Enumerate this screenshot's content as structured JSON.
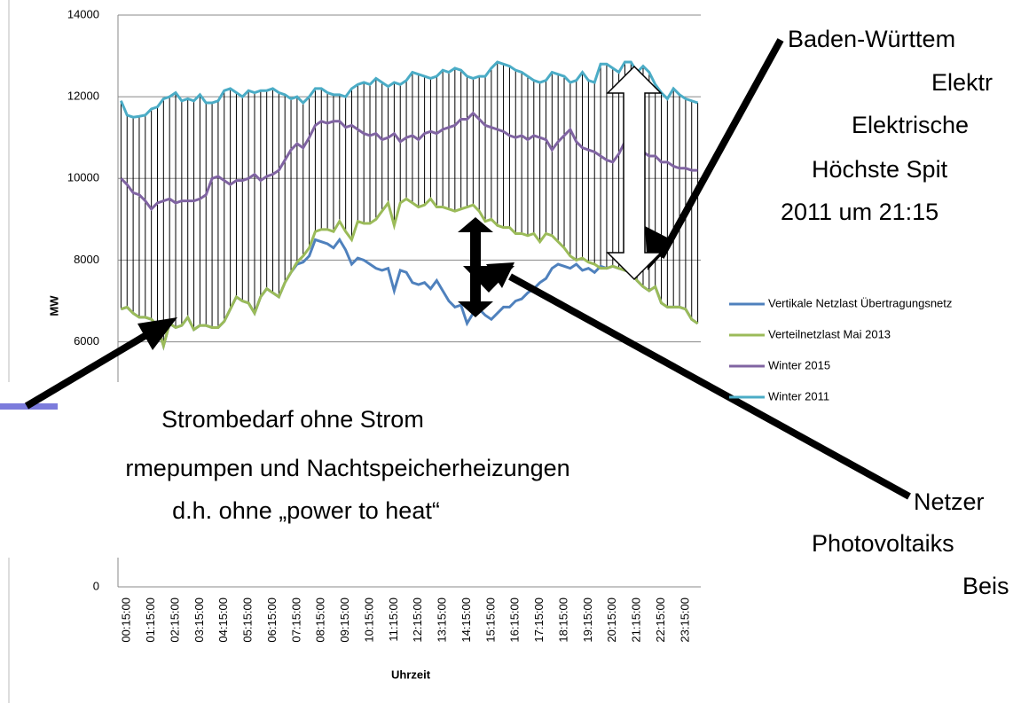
{
  "chart_data": {
    "type": "line",
    "x_label": "Uhrzeit",
    "y_label": "MW",
    "categories": [
      null,
      "00:15:00",
      null,
      null,
      null,
      "01:15:00",
      null,
      null,
      null,
      "02:15:00",
      null,
      null,
      null,
      "03:15:00",
      null,
      null,
      null,
      "04:15:00",
      null,
      null,
      null,
      "05:15:00",
      null,
      null,
      null,
      "06:15:00",
      null,
      null,
      null,
      "07:15:00",
      null,
      null,
      null,
      "08:15:00",
      null,
      null,
      null,
      "09:15:00",
      null,
      null,
      null,
      "10:15:00",
      null,
      null,
      null,
      "11:15:00",
      null,
      null,
      null,
      "12:15:00",
      null,
      null,
      null,
      "13:15:00",
      null,
      null,
      null,
      "14:15:00",
      null,
      null,
      null,
      "15:15:00",
      null,
      null,
      null,
      "16:15:00",
      null,
      null,
      null,
      "17:15:00",
      null,
      null,
      null,
      "18:15:00",
      null,
      null,
      null,
      "19:15:00",
      null,
      null,
      null,
      "20:15:00",
      null,
      null,
      null,
      "21:15:00",
      null,
      null,
      null,
      "22:15:00",
      null,
      null,
      null,
      "23:15:00",
      null,
      null
    ],
    "ylim": [
      0,
      14000
    ],
    "yticks": [
      0,
      2000,
      4000,
      6000,
      8000,
      10000,
      12000,
      14000
    ],
    "grid": true,
    "series": [
      {
        "name": "Vertikale Netzlast Übertragungsnetz",
        "color": "#4f81bd",
        "values": [
          6800,
          6850,
          6700,
          6600,
          6600,
          6550,
          6400,
          5900,
          6450,
          6350,
          6400,
          6600,
          6300,
          6400,
          6400,
          6350,
          6350,
          6500,
          6800,
          7100,
          7000,
          6950,
          6700,
          7100,
          7300,
          7200,
          7100,
          7450,
          7700,
          7900,
          7950,
          8100,
          8500,
          8450,
          8400,
          8300,
          8500,
          8250,
          7900,
          8050,
          8000,
          7900,
          7800,
          7750,
          7800,
          7250,
          7750,
          7700,
          7450,
          7400,
          7450,
          7300,
          7500,
          7250,
          7000,
          6850,
          6900,
          6450,
          6700,
          6800,
          6650,
          6550,
          6700,
          6850,
          6850,
          7000,
          7050,
          7200,
          7300,
          7450,
          7550,
          7800,
          7900,
          7850,
          7800,
          7900,
          7750,
          7800,
          7700,
          7850,
          7800,
          7850,
          7800,
          7750,
          7700,
          7500,
          7350,
          7250,
          7350,
          6950,
          6850,
          6850,
          6850,
          6800,
          6550,
          6450
        ]
      },
      {
        "name": "Verteilnetzlast Mai 2013",
        "color": "#9bbb59",
        "values": [
          6800,
          6850,
          6700,
          6600,
          6600,
          6550,
          6400,
          5900,
          6450,
          6350,
          6400,
          6600,
          6300,
          6400,
          6400,
          6350,
          6350,
          6500,
          6800,
          7100,
          7000,
          6950,
          6700,
          7100,
          7300,
          7200,
          7100,
          7450,
          7700,
          7950,
          8100,
          8300,
          8700,
          8750,
          8750,
          8700,
          8950,
          8700,
          8500,
          8950,
          8900,
          8900,
          9000,
          9200,
          9400,
          8850,
          9400,
          9500,
          9400,
          9300,
          9350,
          9500,
          9300,
          9300,
          9250,
          9200,
          9250,
          9300,
          9350,
          9200,
          8950,
          9000,
          8850,
          8800,
          8800,
          8650,
          8650,
          8600,
          8650,
          8450,
          8650,
          8600,
          8450,
          8300,
          8100,
          8000,
          8050,
          7950,
          7900,
          7800,
          7800,
          7850,
          7800,
          7750,
          7700,
          7500,
          7350,
          7250,
          7350,
          6950,
          6850,
          6850,
          6850,
          6800,
          6550,
          6450
        ]
      },
      {
        "name": "Winter 2015",
        "color": "#8064a2",
        "values": [
          10000,
          9850,
          9650,
          9600,
          9450,
          9250,
          9400,
          9450,
          9500,
          9400,
          9450,
          9450,
          9450,
          9500,
          9600,
          10000,
          10050,
          9950,
          9850,
          9950,
          9950,
          10000,
          10100,
          9950,
          10050,
          10100,
          10200,
          10450,
          10700,
          10850,
          10750,
          11000,
          11300,
          11400,
          11350,
          11400,
          11400,
          11250,
          11300,
          11200,
          11100,
          11050,
          11100,
          10950,
          11000,
          11100,
          10900,
          11000,
          11050,
          10950,
          11100,
          11150,
          11100,
          11200,
          11250,
          11300,
          11450,
          11450,
          11600,
          11450,
          11300,
          11250,
          11200,
          11150,
          11050,
          11000,
          11050,
          10950,
          11050,
          11000,
          10950,
          10700,
          10900,
          11050,
          11200,
          10900,
          10750,
          10700,
          10650,
          10550,
          10450,
          10400,
          10600,
          10900,
          11050,
          10800,
          10650,
          10550,
          10550,
          10400,
          10400,
          10300,
          10250,
          10250,
          10200,
          10200
        ]
      },
      {
        "name": "Winter 2011",
        "color": "#4bacc6",
        "values": [
          11900,
          11550,
          11500,
          11520,
          11550,
          11700,
          11750,
          11950,
          12000,
          12100,
          11900,
          11950,
          11900,
          12050,
          11850,
          11850,
          11900,
          12150,
          12200,
          12100,
          12000,
          12150,
          12100,
          12150,
          12150,
          12200,
          12100,
          12050,
          11950,
          12000,
          11850,
          12000,
          12200,
          12200,
          12100,
          12050,
          12050,
          12000,
          12200,
          12300,
          12350,
          12300,
          12450,
          12350,
          12250,
          12350,
          12300,
          12400,
          12600,
          12550,
          12500,
          12450,
          12500,
          12650,
          12600,
          12700,
          12650,
          12500,
          12450,
          12500,
          12500,
          12700,
          12850,
          12800,
          12750,
          12650,
          12600,
          12500,
          12400,
          12350,
          12400,
          12600,
          12550,
          12500,
          12350,
          12400,
          12600,
          12400,
          12350,
          12800,
          12800,
          12700,
          12600,
          12850,
          12850,
          12600,
          12750,
          12600,
          12300,
          12100,
          11950,
          12200,
          12050,
          11950,
          11900,
          11850
        ]
      }
    ]
  },
  "annotations": {
    "top_right": [
      "Baden-Württem",
      "Elektr",
      "Elektrische",
      "Höchste Spit",
      "2011 um 21:15"
    ],
    "left": [
      "Strombedarf ohne Strom",
      "rmepumpen und Nachtspeicherheizungen",
      "d.h. ohne „power to heat“"
    ],
    "bottom_right": [
      "Netzer",
      "Photovoltaiks",
      "Beis"
    ]
  }
}
